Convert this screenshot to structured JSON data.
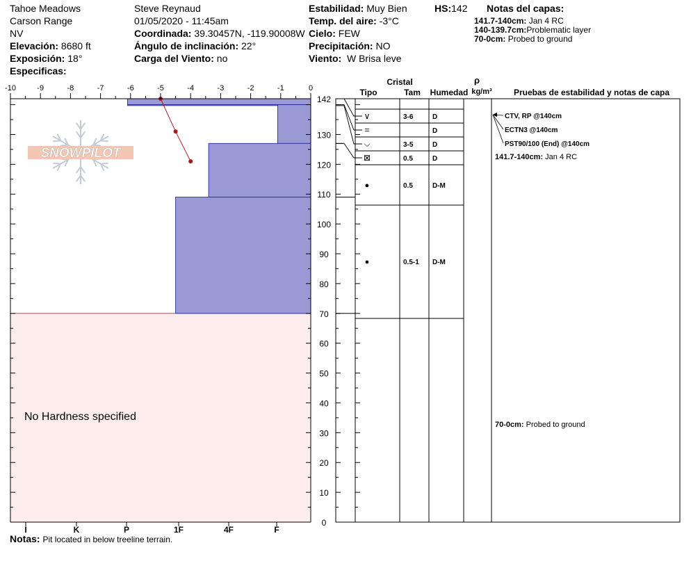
{
  "header": {
    "location": "Tahoe Meadows",
    "range": "Carson Range",
    "state": "NV",
    "elevation_label": "Elevación:",
    "elevation": "8680 ft",
    "aspect_label": "Exposición:",
    "aspect": "18°",
    "specifics_label": "Especificas:",
    "observer": "Steve Reynaud",
    "datetime": "01/05/2020 - 11:45am",
    "coord_label": "Coordinada:",
    "coord": "39.30457N, -119.90008W",
    "slope_label": "Ángulo de inclinación:",
    "slope": "22°",
    "windload_label": "Carga del Viento:",
    "windload": "no",
    "stability_label": "Estabilidad:",
    "stability": "Muy Bien",
    "airtemp_label": "Temp. del aire:",
    "airtemp": "-3°C",
    "sky_label": "Cielo:",
    "sky": "FEW",
    "precip_label": "Precipitación:",
    "precip": "NO",
    "wind_label": "Viento:",
    "wind": "W Brisa leve",
    "hs_label": "HS:",
    "hs": "142",
    "layer_notes_title": "Notas del capas:",
    "layer_notes": [
      {
        "range": "141.7-140cm:",
        "text": "Jan 4 RC"
      },
      {
        "range": "140-139.7cm:",
        "text": "Problematic layer"
      },
      {
        "range": "70-0cm:",
        "text": "Probed to ground"
      }
    ]
  },
  "footer": {
    "notes_label": "Notas:",
    "notes": "Pit located in below treeline terrain."
  },
  "logo_text": "SNOWPILOT",
  "no_hardness_text": "No Hardness specified",
  "table_headers": {
    "cristal": "Cristal",
    "tipo": "Tipo",
    "tam": "Tam",
    "humedad": "Humedad",
    "rho": "ρ",
    "density_unit": "kg/m³",
    "tests": "Pruebas de estabilidad y notas de capa"
  },
  "colors": {
    "hardness_fill": "#9999d6",
    "hardness_stroke": "#2b2b9a",
    "no_hardness_fill": "#fdeeed",
    "temp_line": "#a31b1b"
  },
  "chart_data": {
    "type": "area",
    "title": "",
    "x_axis_top": {
      "ticks": [
        "-10",
        "-9",
        "-8",
        "-7",
        "-6",
        "-5",
        "-4",
        "-3",
        "-2",
        "-1",
        "0"
      ],
      "range": [
        -10,
        0
      ]
    },
    "x_axis_bottom": {
      "ticks": [
        "I",
        "K",
        "P",
        "1F",
        "4F",
        "F"
      ]
    },
    "y_axis": {
      "ticks": [
        "0",
        "10",
        "20",
        "30",
        "40",
        "50",
        "60",
        "70",
        "80",
        "90",
        "100",
        "110",
        "120",
        "130",
        "142"
      ],
      "range": [
        0,
        142
      ]
    },
    "hardness_layers": [
      {
        "top": 142,
        "bottom": 140,
        "extent": -6.1
      },
      {
        "top": 140,
        "bottom": 139.7,
        "extent": -6.1
      },
      {
        "top": 140,
        "bottom": 127,
        "extent": -1.1
      },
      {
        "top": 127,
        "bottom": 109,
        "extent": -3.4
      },
      {
        "top": 109,
        "bottom": 70,
        "extent": -4.5
      }
    ],
    "temperature_profile": [
      {
        "depth": 142,
        "temp": -5.0
      },
      {
        "depth": 131,
        "temp": -4.5
      },
      {
        "depth": 121,
        "temp": -4.0
      }
    ],
    "no_hardness_range": [
      0,
      70
    ],
    "layers": [
      {
        "glyph": "∨",
        "size": "3-6",
        "moisture": "D",
        "label_depth": 142
      },
      {
        "glyph": "=",
        "size": "",
        "moisture": "D",
        "label_depth": 137
      },
      {
        "glyph": "⌵",
        "size": "3-5",
        "moisture": "D",
        "label_depth": 132
      },
      {
        "glyph": "⊠",
        "size": "0.5",
        "moisture": "D",
        "label_depth": 127
      },
      {
        "glyph": "●",
        "size": "0.5",
        "moisture": "D-M",
        "label_depth": 116
      },
      {
        "glyph": "●",
        "size": "0.5-1",
        "moisture": "D-M",
        "label_depth": 90
      }
    ],
    "layer_boundaries": [
      142,
      140,
      139.7,
      127,
      122,
      109,
      70
    ],
    "tests": [
      "CTV, RP @140cm",
      "ECTN3 @140cm",
      "PST90/100 (End) @140cm"
    ],
    "layer_comments": [
      {
        "range": "141.7-140cm:",
        "text": "Jan 4 RC",
        "depth": 141.7
      },
      {
        "range": "70-0cm:",
        "text": "Probed to ground",
        "depth": 35
      }
    ]
  }
}
